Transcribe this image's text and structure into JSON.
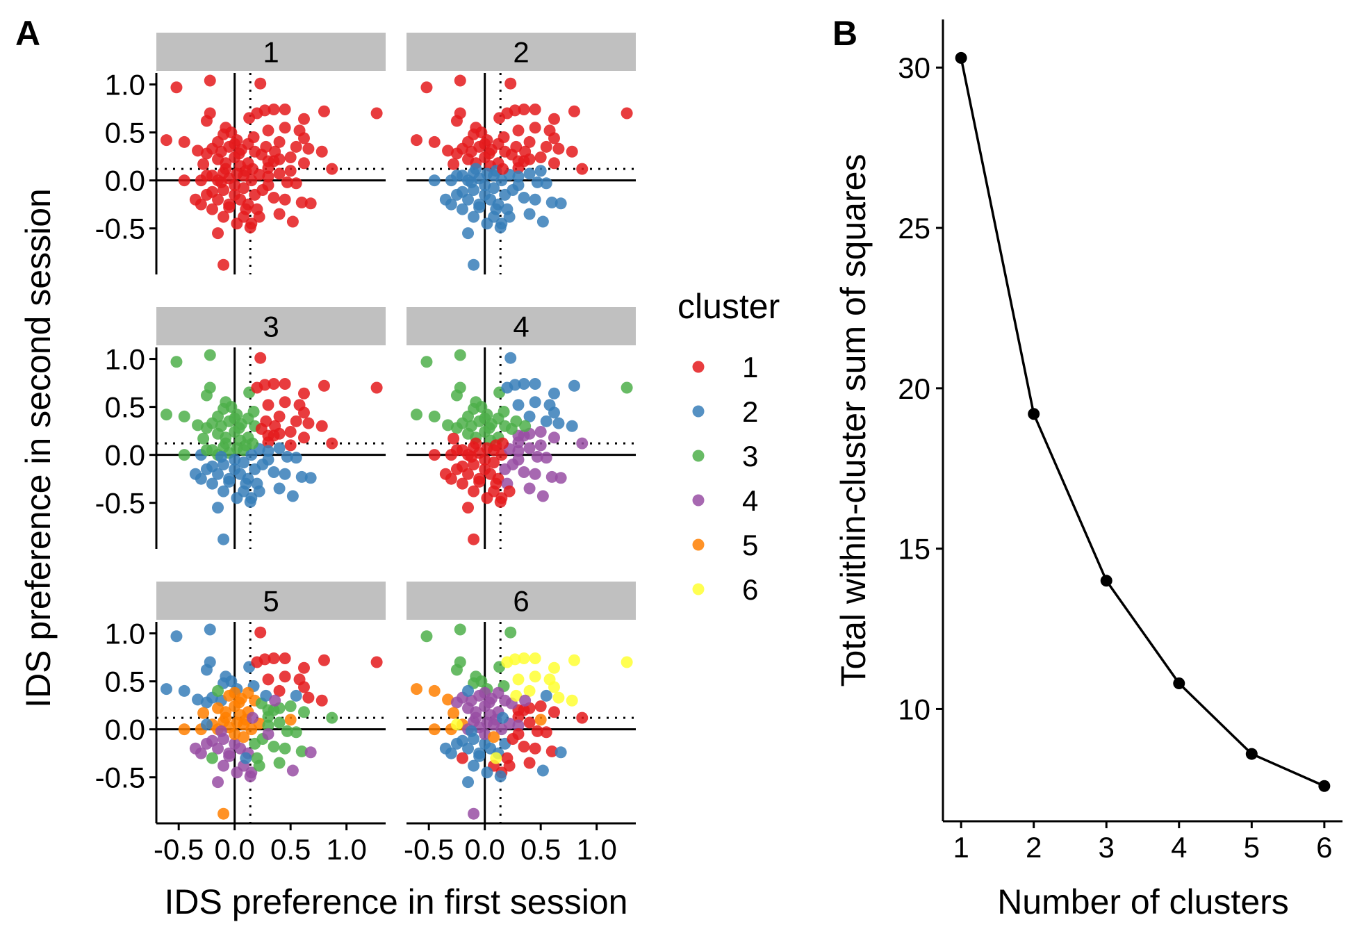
{
  "panel_labels": {
    "a": "A",
    "b": "B"
  },
  "colors": {
    "cluster_1": "#e41a1c",
    "cluster_2": "#377eb8",
    "cluster_3": "#4daf4a",
    "cluster_4": "#984ea3",
    "cluster_5": "#ff7f00",
    "cluster_6": "#ffff33",
    "strip": "#c0c0c0"
  },
  "chart_data": [
    {
      "type": "scatter",
      "panel": "A",
      "xlabel": "IDS preference in first session",
      "ylabel": "IDS preference in second session",
      "xlim": [
        -0.7,
        1.35
      ],
      "ylim": [
        -0.98,
        1.12
      ],
      "x_ticks": [
        -0.5,
        0.0,
        0.5,
        1.0
      ],
      "x_tick_labels": [
        "-0.5",
        "0.0",
        "0.5",
        "1.0"
      ],
      "y_ticks": [
        -0.5,
        0.0,
        0.5,
        1.0
      ],
      "y_tick_labels": [
        "-0.5",
        "0.0",
        "0.5",
        "1.0"
      ],
      "reference_lines": {
        "solid_x": 0,
        "solid_y": 0,
        "dotted_x": 0.14,
        "dotted_y": 0.12
      },
      "facets": [
        "1",
        "2",
        "3",
        "4",
        "5",
        "6"
      ],
      "legend": {
        "title": "cluster",
        "entries": [
          "1",
          "2",
          "3",
          "4",
          "5",
          "6"
        ],
        "placement": "right"
      },
      "points": [
        [
          -0.52,
          0.97
        ],
        [
          -0.22,
          1.04
        ],
        [
          0.23,
          1.01
        ],
        [
          1.27,
          0.7
        ],
        [
          -0.61,
          0.42
        ],
        [
          -0.45,
          0.4
        ],
        [
          -0.25,
          0.62
        ],
        [
          -0.22,
          0.7
        ],
        [
          0.13,
          0.65
        ],
        [
          0.2,
          0.7
        ],
        [
          0.27,
          0.73
        ],
        [
          0.35,
          0.74
        ],
        [
          0.45,
          0.74
        ],
        [
          0.62,
          0.64
        ],
        [
          0.8,
          0.72
        ],
        [
          0.58,
          0.52
        ],
        [
          0.45,
          0.55
        ],
        [
          0.3,
          0.52
        ],
        [
          0.17,
          0.45
        ],
        [
          0.4,
          0.4
        ],
        [
          0.62,
          0.44
        ],
        [
          0.66,
          0.33
        ],
        [
          0.78,
          0.3
        ],
        [
          0.87,
          0.12
        ],
        [
          0.62,
          0.18
        ],
        [
          0.5,
          0.24
        ],
        [
          0.4,
          0.22
        ],
        [
          0.3,
          0.2
        ],
        [
          -0.03,
          0.5
        ],
        [
          -0.08,
          0.55
        ],
        [
          -0.1,
          0.48
        ],
        [
          0.02,
          0.42
        ],
        [
          -0.33,
          0.31
        ],
        [
          -0.25,
          0.28
        ],
        [
          -0.2,
          0.33
        ],
        [
          -0.12,
          0.3
        ],
        [
          -0.05,
          0.35
        ],
        [
          0.0,
          0.38
        ],
        [
          0.06,
          0.32
        ],
        [
          0.12,
          0.38
        ],
        [
          0.18,
          0.3
        ],
        [
          0.24,
          0.27
        ],
        [
          -0.28,
          0.17
        ],
        [
          -0.15,
          0.22
        ],
        [
          -0.08,
          0.18
        ],
        [
          0.0,
          0.24
        ],
        [
          0.05,
          0.15
        ],
        [
          0.12,
          0.18
        ],
        [
          0.3,
          0.13
        ],
        [
          0.35,
          0.2
        ],
        [
          -0.45,
          0.0
        ],
        [
          -0.3,
          0.0
        ],
        [
          -0.2,
          0.05
        ],
        [
          -0.1,
          0.08
        ],
        [
          -0.05,
          0.02
        ],
        [
          0.02,
          0.07
        ],
        [
          0.08,
          0.05
        ],
        [
          0.15,
          0.0
        ],
        [
          0.22,
          0.06
        ],
        [
          0.3,
          0.04
        ],
        [
          0.4,
          0.07
        ],
        [
          0.47,
          -0.02
        ],
        [
          0.55,
          -0.03
        ],
        [
          -0.15,
          0.0
        ],
        [
          0.1,
          0.1
        ],
        [
          -0.12,
          -0.02
        ],
        [
          -0.35,
          -0.2
        ],
        [
          -0.3,
          -0.25
        ],
        [
          -0.25,
          -0.15
        ],
        [
          -0.2,
          -0.12
        ],
        [
          -0.15,
          -0.2
        ],
        [
          -0.1,
          -0.1
        ],
        [
          -0.05,
          -0.25
        ],
        [
          0.0,
          -0.15
        ],
        [
          0.05,
          -0.2
        ],
        [
          0.12,
          -0.25
        ],
        [
          0.18,
          -0.15
        ],
        [
          0.25,
          -0.1
        ],
        [
          0.35,
          -0.18
        ],
        [
          0.45,
          -0.2
        ],
        [
          0.6,
          -0.23
        ],
        [
          0.68,
          -0.24
        ],
        [
          -0.1,
          -0.38
        ],
        [
          -0.05,
          -0.28
        ],
        [
          0.08,
          -0.38
        ],
        [
          0.15,
          -0.45
        ],
        [
          0.2,
          -0.3
        ],
        [
          0.4,
          -0.35
        ],
        [
          0.52,
          -0.43
        ],
        [
          -0.15,
          -0.55
        ],
        [
          0.02,
          -0.45
        ],
        [
          0.14,
          -0.49
        ],
        [
          -0.1,
          -0.88
        ],
        [
          0.0,
          -0.05
        ],
        [
          0.08,
          -0.08
        ],
        [
          -0.08,
          0.12
        ],
        [
          0.04,
          0.28
        ],
        [
          0.16,
          0.12
        ],
        [
          -0.2,
          -0.3
        ],
        [
          0.3,
          -0.05
        ],
        [
          0.22,
          -0.38
        ],
        [
          0.5,
          0.1
        ],
        [
          -0.25,
          0.05
        ],
        [
          0.28,
          0.35
        ],
        [
          0.36,
          0.3
        ],
        [
          -0.15,
          0.4
        ],
        [
          0.1,
          -0.3
        ],
        [
          0.55,
          0.35
        ]
      ],
      "assignments": {
        "1": [
          1,
          1,
          1,
          1,
          1,
          1,
          1,
          1,
          1,
          1,
          1,
          1,
          1,
          1,
          1,
          1,
          1,
          1,
          1,
          1,
          1,
          1,
          1,
          1,
          1,
          1,
          1,
          1,
          1,
          1,
          1,
          1,
          1,
          1,
          1,
          1,
          1,
          1,
          1,
          1,
          1,
          1,
          1,
          1,
          1,
          1,
          1,
          1,
          1,
          1,
          1,
          1,
          1,
          1,
          1,
          1,
          1,
          1,
          1,
          1,
          1,
          1,
          1,
          1,
          1,
          1,
          1,
          1,
          1,
          1,
          1,
          1,
          1,
          1,
          1,
          1,
          1,
          1,
          1,
          1,
          1,
          1,
          1,
          1,
          1,
          1,
          1,
          1,
          1,
          1,
          1,
          1,
          1,
          1,
          1,
          1,
          1,
          1,
          1,
          1,
          1,
          1,
          1,
          1,
          1,
          1,
          1,
          1
        ],
        "2": [
          1,
          1,
          1,
          1,
          1,
          1,
          1,
          1,
          1,
          1,
          1,
          1,
          1,
          1,
          1,
          1,
          1,
          1,
          1,
          1,
          1,
          1,
          1,
          1,
          1,
          1,
          1,
          1,
          1,
          1,
          1,
          1,
          1,
          1,
          1,
          1,
          1,
          1,
          1,
          1,
          1,
          1,
          1,
          1,
          1,
          1,
          1,
          1,
          1,
          1,
          2,
          2,
          2,
          2,
          2,
          2,
          2,
          2,
          2,
          2,
          2,
          2,
          2,
          2,
          2,
          2,
          2,
          2,
          2,
          2,
          2,
          2,
          2,
          2,
          2,
          2,
          2,
          2,
          2,
          2,
          2,
          2,
          2,
          2,
          2,
          2,
          2,
          2,
          2,
          2,
          2,
          2,
          2,
          2,
          2,
          2,
          1,
          1,
          2,
          2,
          2,
          2,
          2,
          1,
          1,
          1,
          2,
          1
        ],
        "3": [
          3,
          3,
          1,
          1,
          3,
          3,
          3,
          3,
          3,
          1,
          1,
          1,
          1,
          1,
          1,
          1,
          1,
          1,
          3,
          1,
          1,
          1,
          1,
          1,
          1,
          1,
          1,
          1,
          3,
          3,
          3,
          3,
          3,
          3,
          3,
          3,
          3,
          3,
          3,
          3,
          3,
          1,
          3,
          3,
          3,
          3,
          3,
          3,
          1,
          1,
          3,
          2,
          3,
          3,
          3,
          3,
          3,
          2,
          2,
          2,
          2,
          2,
          2,
          3,
          3,
          2,
          2,
          2,
          2,
          2,
          2,
          2,
          2,
          2,
          2,
          2,
          2,
          2,
          2,
          2,
          2,
          2,
          2,
          2,
          2,
          2,
          2,
          2,
          2,
          2,
          2,
          2,
          2,
          2,
          2,
          3,
          3,
          3,
          2,
          2,
          2,
          1,
          3,
          1,
          1,
          3,
          2,
          1
        ],
        "4": [
          3,
          3,
          2,
          3,
          3,
          3,
          3,
          3,
          3,
          2,
          2,
          2,
          2,
          2,
          2,
          2,
          2,
          2,
          3,
          2,
          2,
          2,
          2,
          4,
          4,
          4,
          4,
          4,
          3,
          3,
          3,
          3,
          3,
          3,
          3,
          3,
          3,
          3,
          3,
          3,
          3,
          3,
          1,
          3,
          3,
          3,
          3,
          3,
          4,
          4,
          1,
          1,
          1,
          1,
          1,
          1,
          1,
          1,
          4,
          4,
          4,
          4,
          4,
          1,
          1,
          1,
          1,
          1,
          1,
          1,
          1,
          1,
          1,
          1,
          1,
          1,
          4,
          4,
          4,
          4,
          4,
          4,
          1,
          1,
          1,
          1,
          4,
          4,
          4,
          1,
          1,
          1,
          1,
          1,
          1,
          1,
          3,
          1,
          1,
          4,
          1,
          4,
          1,
          3,
          3,
          3,
          1,
          2
        ],
        "5": [
          2,
          2,
          1,
          1,
          2,
          2,
          2,
          2,
          2,
          1,
          1,
          1,
          1,
          1,
          1,
          1,
          1,
          1,
          2,
          1,
          1,
          1,
          1,
          3,
          3,
          3,
          3,
          3,
          2,
          2,
          2,
          2,
          2,
          2,
          2,
          2,
          5,
          5,
          5,
          5,
          5,
          3,
          5,
          5,
          5,
          5,
          5,
          5,
          3,
          3,
          5,
          5,
          5,
          5,
          5,
          5,
          5,
          5,
          5,
          3,
          3,
          3,
          3,
          5,
          5,
          4,
          4,
          4,
          4,
          4,
          4,
          4,
          4,
          4,
          4,
          4,
          3,
          3,
          3,
          3,
          3,
          4,
          4,
          4,
          4,
          4,
          3,
          3,
          4,
          4,
          4,
          4,
          5,
          5,
          5,
          5,
          5,
          4,
          3,
          4,
          3,
          5,
          2,
          2,
          4,
          3,
          2,
          2
        ],
        "6": [
          3,
          3,
          3,
          6,
          5,
          5,
          3,
          3,
          3,
          6,
          6,
          6,
          6,
          6,
          6,
          6,
          6,
          6,
          3,
          6,
          6,
          6,
          6,
          1,
          1,
          1,
          1,
          1,
          3,
          3,
          3,
          3,
          5,
          4,
          4,
          4,
          4,
          4,
          4,
          4,
          4,
          4,
          5,
          4,
          4,
          4,
          4,
          4,
          1,
          1,
          5,
          5,
          5,
          4,
          4,
          4,
          4,
          4,
          4,
          4,
          1,
          1,
          1,
          4,
          4,
          2,
          2,
          2,
          2,
          2,
          2,
          2,
          2,
          2,
          2,
          2,
          2,
          1,
          1,
          1,
          1,
          2,
          2,
          2,
          1,
          1,
          1,
          1,
          2,
          2,
          2,
          2,
          4,
          4,
          5,
          4,
          4,
          2,
          1,
          1,
          1,
          5,
          6,
          6,
          4,
          2,
          6,
          2
        ]
      }
    },
    {
      "type": "line",
      "panel": "B",
      "xlabel": "Number of clusters",
      "ylabel": "Total within-cluster sum of squares",
      "x": [
        1,
        2,
        3,
        4,
        5,
        6
      ],
      "y": [
        30.3,
        19.2,
        14.0,
        10.8,
        8.6,
        7.6
      ],
      "xlim": [
        0.75,
        6.25
      ],
      "ylim": [
        6.5,
        31.5
      ],
      "x_ticks": [
        1,
        2,
        3,
        4,
        5,
        6
      ],
      "x_tick_labels": [
        "1",
        "2",
        "3",
        "4",
        "5",
        "6"
      ],
      "y_ticks": [
        10,
        15,
        20,
        25,
        30
      ],
      "y_tick_labels": [
        "10",
        "15",
        "20",
        "25",
        "30"
      ],
      "markers": true
    }
  ]
}
